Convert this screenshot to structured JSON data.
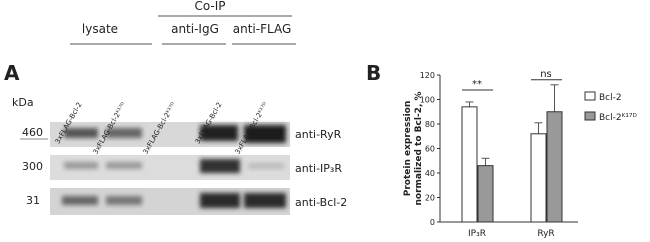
{
  "panel_a": {
    "letter": "A",
    "co_ip": "Co-IP",
    "groups": [
      "lysate",
      "anti-IgG",
      "anti-FLAG"
    ],
    "lanes": [
      "3xFLAG-Bcl-2",
      "3xFLAG-Bcl-2ᴷ¹⁷ᴰ",
      "3xFLAG-Bcl-2ᴷ¹⁷ᴰ",
      "3xFLAG-Bcl-2",
      "3xFLAG-Bcl-2ᴷ¹⁷ᴰ"
    ],
    "kda": "kDa",
    "markers": [
      "460",
      "300",
      "31"
    ],
    "blots": [
      "anti-RyR",
      "anti-IP₃R",
      "anti-Bcl-2"
    ]
  },
  "chart_data": {
    "type": "bar",
    "letter": "B",
    "ylabel": [
      "Protein expression",
      "normalized to Bcl-2, %"
    ],
    "categories": [
      "IP₃R",
      "RyR"
    ],
    "series": [
      {
        "name": "Bcl-2",
        "color": "#ffffff",
        "values": [
          94,
          72
        ],
        "errors": [
          4,
          9
        ]
      },
      {
        "name": "Bcl-2ᴷ¹⁷ᴰ",
        "color": "#999999",
        "values": [
          46,
          90
        ],
        "errors": [
          6,
          22
        ]
      }
    ],
    "ylim": [
      0,
      120
    ],
    "yticks": [
      0,
      20,
      40,
      60,
      80,
      100,
      120
    ],
    "annotations": [
      "**",
      "ns"
    ],
    "legend": "right"
  }
}
